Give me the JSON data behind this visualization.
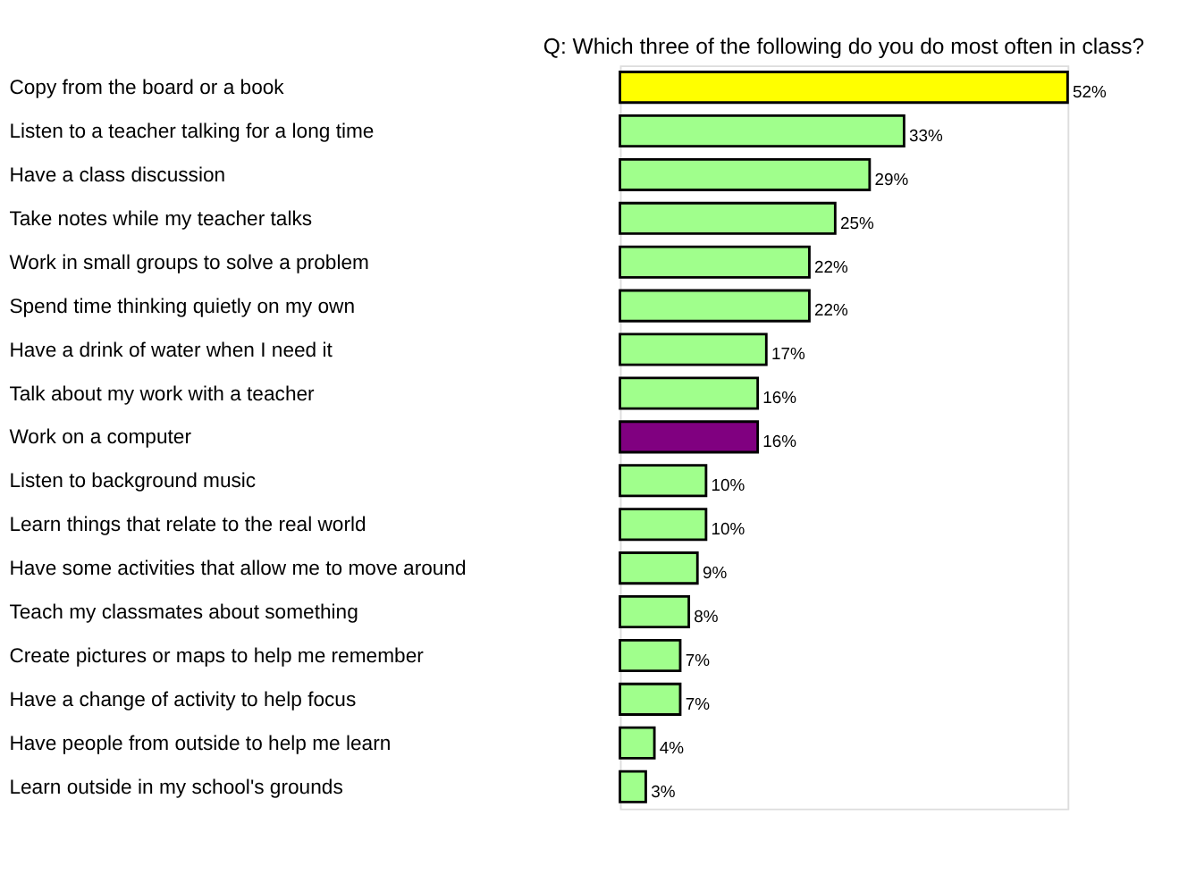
{
  "chart_data": {
    "type": "bar",
    "orientation": "horizontal",
    "title": "Q: Which three of the following do you do most often in class?",
    "categories": [
      "Copy from the board or a book",
      "Listen to a teacher talking for a long  time",
      "Have a class discussion",
      "Take notes while my teacher talks",
      "Work in small groups to solve a problem",
      "Spend time thinking quietly on my own",
      "Have a drink of water when I need it",
      "Talk about my work with a teacher",
      "Work on a computer",
      "Listen to background music",
      "Learn things that relate to the real world",
      "Have some activities that allow me to move around",
      "Teach my classmates about something",
      "Create pictures or maps to help me remember",
      "Have a change of activity to help focus",
      "Have people from outside to help me  learn",
      "Learn outside in my school's grounds"
    ],
    "values": [
      52,
      33,
      29,
      25,
      22,
      22,
      17,
      16,
      16,
      10,
      10,
      9,
      8,
      7,
      7,
      4,
      3
    ],
    "colors": [
      "#ffff00",
      "#a0ff8c",
      "#a0ff8c",
      "#a0ff8c",
      "#a0ff8c",
      "#a0ff8c",
      "#a0ff8c",
      "#a0ff8c",
      "#800080",
      "#a0ff8c",
      "#a0ff8c",
      "#a0ff8c",
      "#a0ff8c",
      "#a0ff8c",
      "#a0ff8c",
      "#a0ff8c",
      "#a0ff8c"
    ],
    "value_labels": [
      "52%",
      "33%",
      "29%",
      "25%",
      "22%",
      "22%",
      "17%",
      "16%",
      "16%",
      "10%",
      "10%",
      "9%",
      "8%",
      "7%",
      "7%",
      "4%",
      "3%"
    ],
    "legend": false,
    "grid": false
  }
}
